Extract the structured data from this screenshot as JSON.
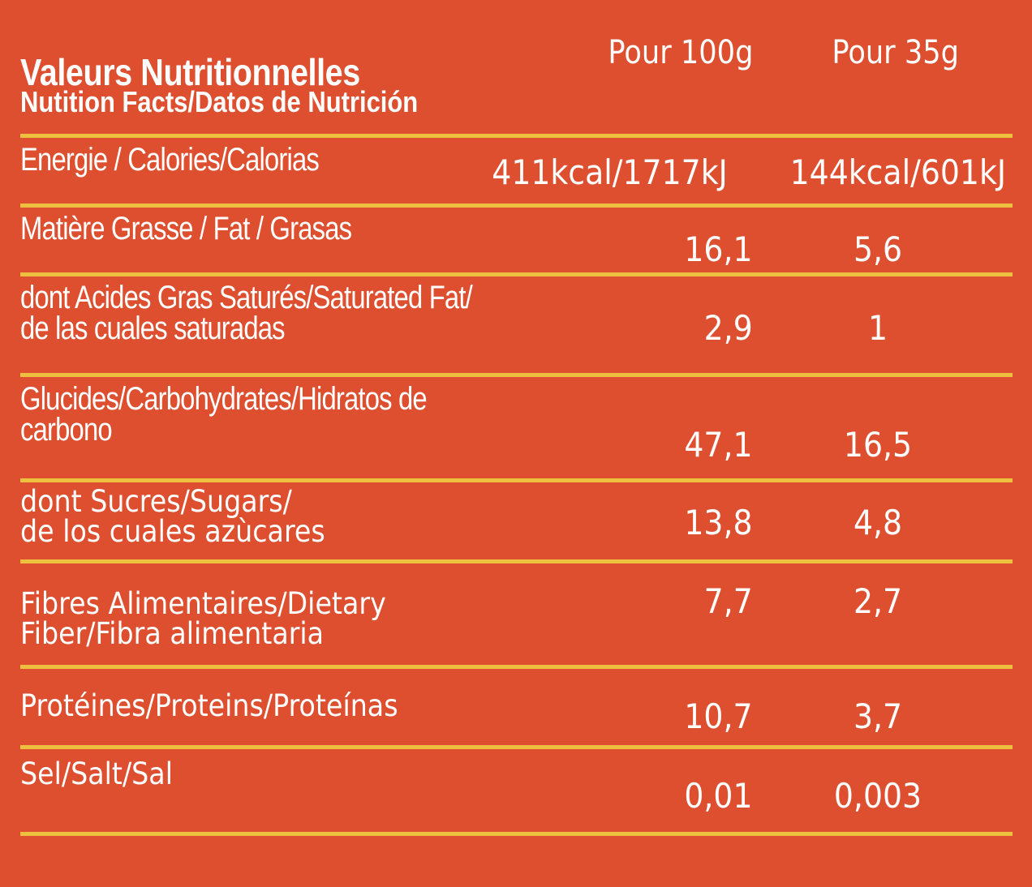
{
  "title": "Valeurs Nutritionnelles",
  "subtitle": "Nutition Facts/Datos de Nutrición",
  "columns": [
    "Pour 100g",
    "Pour 35g"
  ],
  "colors": {
    "background": "#DE4F30",
    "divider": "#EDC03F",
    "text": "#FFFFFF"
  },
  "rows": [
    {
      "label": [
        "Energie / Calories/Calorias"
      ],
      "per100g": "411kcal/1717kJ",
      "per35g": "144kcal/601kJ"
    },
    {
      "label": [
        "Matière Grasse / Fat / Grasas"
      ],
      "per100g": "16,1",
      "per35g": "5,6"
    },
    {
      "label": [
        "dont Acides Gras Saturés/Saturated Fat/",
        "de las cuales saturadas"
      ],
      "per100g": "2,9",
      "per35g": "1"
    },
    {
      "label": [
        "Glucides/Carbohydrates/Hidratos de",
        "carbono"
      ],
      "per100g": "47,1",
      "per35g": "16,5"
    },
    {
      "label": [
        "dont Sucres/Sugars/",
        "de los cuales azùcares"
      ],
      "per100g": "13,8",
      "per35g": "4,8"
    },
    {
      "label": [
        "Fibres Alimentaires/Dietary",
        "Fiber/Fibra alimentaria"
      ],
      "per100g": "7,7",
      "per35g": "2,7"
    },
    {
      "label": [
        "Protéines/Proteins/Proteínas"
      ],
      "per100g": "10,7",
      "per35g": "3,7"
    },
    {
      "label": [
        "Sel/Salt/Sal"
      ],
      "per100g": "0,01",
      "per35g": "0,003"
    }
  ]
}
